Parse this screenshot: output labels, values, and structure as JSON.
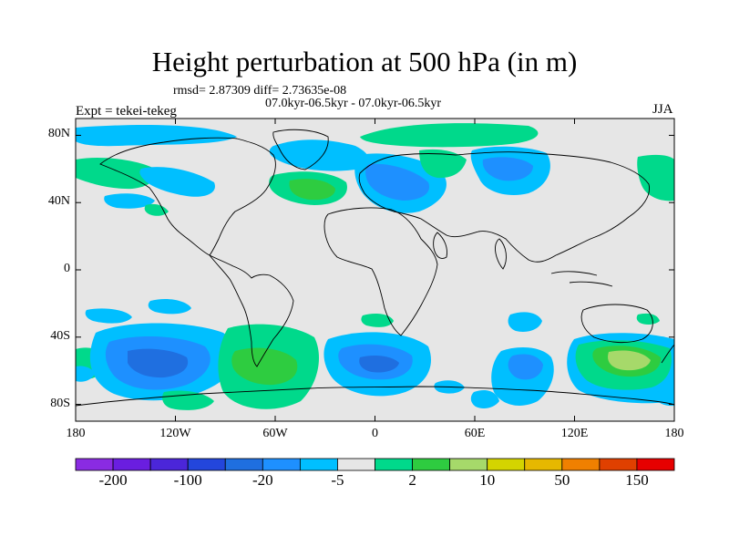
{
  "title": "Height perturbation at 500 hPa (in m)",
  "stats": "rmsd= 2.87309 diff= 2.73635e-08",
  "period": "07.0kyr-06.5kyr - 07.0kyr-06.5kyr",
  "experiment": "Expt = tekei-tekeg",
  "season": "JJA",
  "map": {
    "y_ticks": [
      {
        "label": "80N",
        "lat": 80
      },
      {
        "label": "40N",
        "lat": 40
      },
      {
        "label": "0",
        "lat": 0
      },
      {
        "label": "40S",
        "lat": -40
      },
      {
        "label": "80S",
        "lat": -80
      }
    ],
    "x_ticks": [
      {
        "label": "180",
        "lon": -180
      },
      {
        "label": "120W",
        "lon": -120
      },
      {
        "label": "60W",
        "lon": -60
      },
      {
        "label": "0",
        "lon": 0
      },
      {
        "label": "60E",
        "lon": 60
      },
      {
        "label": "120E",
        "lon": 120
      },
      {
        "label": "180",
        "lon": 180
      }
    ],
    "background_color": "#e6e6e6"
  },
  "colorbar": {
    "colors": [
      "#8a2be2",
      "#6a1ee0",
      "#4b26d9",
      "#2346dc",
      "#1f6fe0",
      "#1e90ff",
      "#00bfff",
      "#e6e6e6",
      "#00d98b",
      "#2ecc40",
      "#a6d96a",
      "#d4d400",
      "#e6b800",
      "#f08000",
      "#e04000",
      "#e60000"
    ],
    "labels": [
      {
        "text": "-200",
        "boundary": 1
      },
      {
        "text": "-100",
        "boundary": 3
      },
      {
        "text": "-20",
        "boundary": 5
      },
      {
        "text": "-5",
        "boundary": 7
      },
      {
        "text": "2",
        "boundary": 9
      },
      {
        "text": "10",
        "boundary": 11
      },
      {
        "text": "50",
        "boundary": 13
      },
      {
        "text": "150",
        "boundary": 15
      }
    ]
  },
  "fields": [
    {
      "lon": -160,
      "lat": -55,
      "level": "-10"
    },
    {
      "lon": -50,
      "lat": -55,
      "level": "+5"
    },
    {
      "lon": -10,
      "lat": -57,
      "level": "-10"
    },
    {
      "lon": 90,
      "lat": -65,
      "level": "-5"
    },
    {
      "lon": 150,
      "lat": -55,
      "level": "+10"
    },
    {
      "lon": -70,
      "lat": 65,
      "level": "-5"
    },
    {
      "lon": -40,
      "lat": 48,
      "level": "+5"
    },
    {
      "lon": 10,
      "lat": 48,
      "level": "-10"
    },
    {
      "lon": 55,
      "lat": 75,
      "level": "+5"
    },
    {
      "lon": 90,
      "lat": 58,
      "level": "-10"
    },
    {
      "lon": -160,
      "lat": 60,
      "level": "+5"
    }
  ]
}
